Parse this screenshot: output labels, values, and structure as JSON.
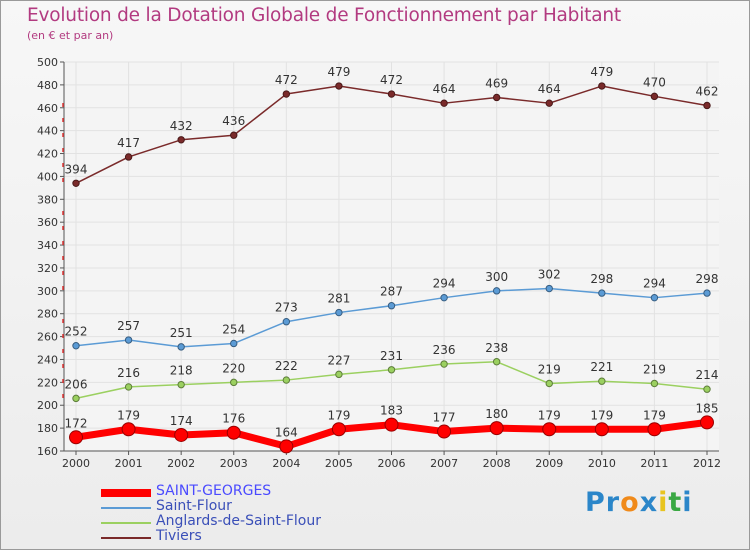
{
  "title": "Evolution de la Dotation Globale de Fonctionnement par Habitant",
  "subtitle": "(en € et par an)",
  "logo": {
    "text": "Proxiti",
    "colors": [
      "#2b86c9",
      "#2b86c9",
      "#f08a1a",
      "#2b86c9",
      "#e8c41f",
      "#3aa843",
      "#2b86c9"
    ]
  },
  "chart_data": {
    "type": "line",
    "title": "Evolution de la Dotation Globale de Fonctionnement par Habitant",
    "ylabel": "(en € et par an)",
    "categories": [
      "2000",
      "2001",
      "2002",
      "2003",
      "2004",
      "2005",
      "2006",
      "2007",
      "2008",
      "2009",
      "2010",
      "2011",
      "2012"
    ],
    "ylim": [
      160,
      500
    ],
    "yticks": [
      160,
      180,
      200,
      220,
      240,
      260,
      280,
      300,
      320,
      340,
      360,
      380,
      400,
      420,
      440,
      460,
      480,
      500
    ],
    "grid": true,
    "legend": "bottom-left",
    "series": [
      {
        "name": "SAINT-GEORGES",
        "color": "#ff0000",
        "thick": true,
        "values": [
          172,
          179,
          174,
          176,
          164,
          179,
          183,
          177,
          180,
          179,
          179,
          179,
          185
        ]
      },
      {
        "name": "Saint-Flour",
        "color": "#5b9bd5",
        "thick": false,
        "values": [
          252,
          257,
          251,
          254,
          273,
          281,
          287,
          294,
          300,
          302,
          298,
          294,
          298
        ]
      },
      {
        "name": "Anglards-de-Saint-Flour",
        "color": "#9bd060",
        "thick": false,
        "values": [
          206,
          216,
          218,
          220,
          222,
          227,
          231,
          236,
          238,
          219,
          221,
          219,
          214
        ]
      },
      {
        "name": "Tiviers",
        "color": "#7a2a2a",
        "thick": false,
        "values": [
          394,
          417,
          432,
          436,
          472,
          479,
          472,
          464,
          469,
          464,
          479,
          470,
          462
        ]
      }
    ]
  }
}
